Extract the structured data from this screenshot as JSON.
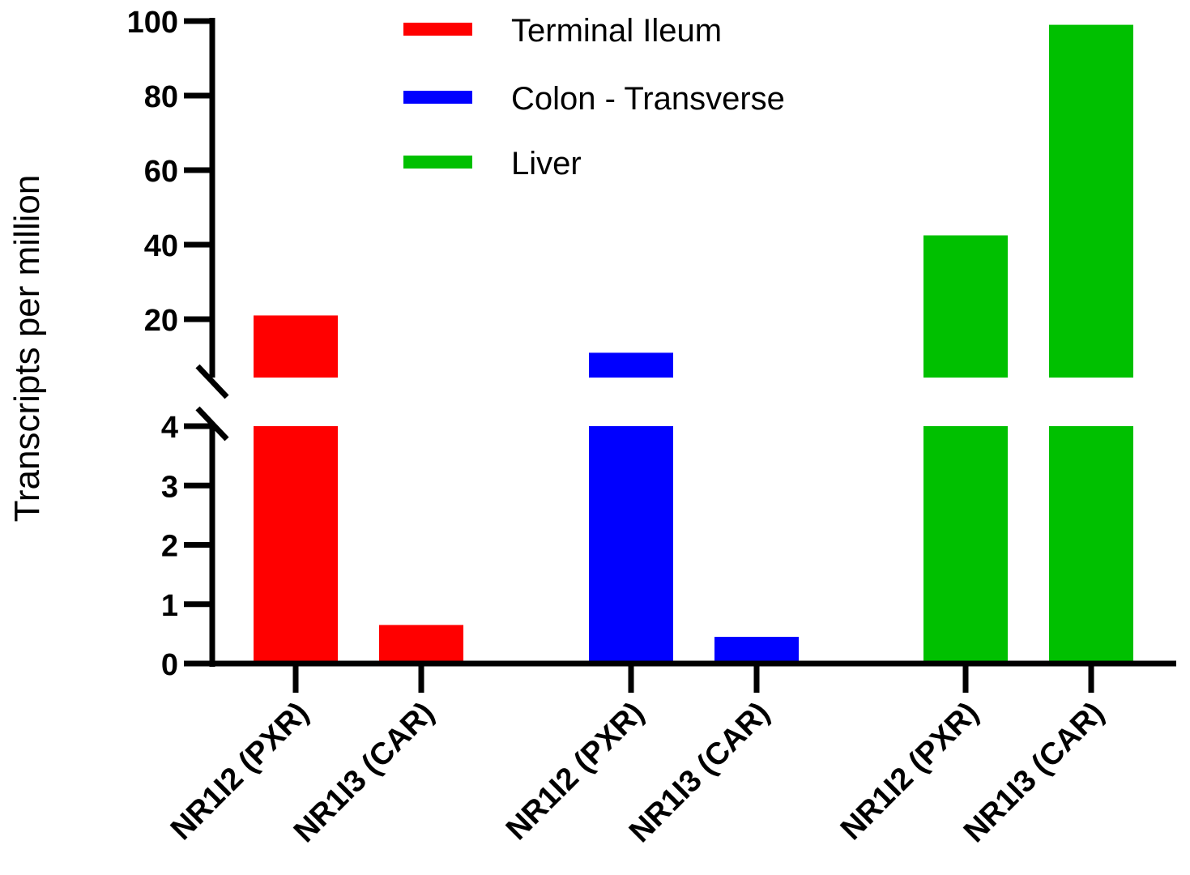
{
  "chart_data": {
    "type": "bar",
    "title": "",
    "ylabel": "Transcripts per million",
    "xlabel": "",
    "categories": [
      "NR1I2 (PXR)",
      "NR1I3 (CAR)"
    ],
    "series": [
      {
        "name": "Terminal Ileum",
        "color": "#ff0000",
        "values": [
          21,
          0.65
        ]
      },
      {
        "name": "Colon - Transverse",
        "color": "#0000ff",
        "values": [
          11,
          0.45
        ]
      },
      {
        "name": "Liver",
        "color": "#00c000",
        "values": [
          42.5,
          99
        ]
      }
    ],
    "y_axis_break": {
      "lower_range": [
        0,
        4
      ],
      "upper_range": [
        4,
        100
      ],
      "lower_ticks": [
        "0",
        "1",
        "2",
        "3",
        "4"
      ],
      "upper_ticks": [
        "20",
        "40",
        "60",
        "80",
        "100"
      ]
    },
    "legend_position": "top-center",
    "grid": false
  }
}
